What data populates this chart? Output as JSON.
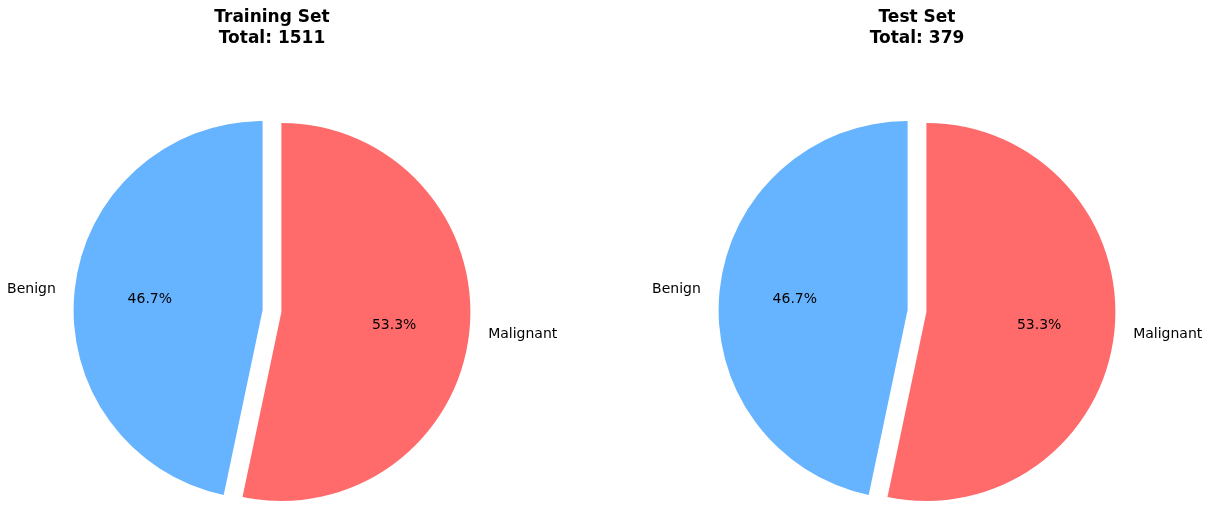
{
  "chart_data": [
    {
      "type": "pie",
      "title": "Training Set\nTotal: 1511",
      "categories": [
        "Benign",
        "Malignant"
      ],
      "values": [
        46.7,
        53.3
      ],
      "colors": [
        "#66b3ff",
        "#ff6b6b"
      ],
      "value_labels": [
        "46.7%",
        "53.3%"
      ],
      "legend": false
    },
    {
      "type": "pie",
      "title": "Test Set\nTotal: 379",
      "categories": [
        "Benign",
        "Malignant"
      ],
      "values": [
        46.7,
        53.3
      ],
      "colors": [
        "#66b3ff",
        "#ff6b6b"
      ],
      "value_labels": [
        "46.7%",
        "53.3%"
      ],
      "legend": false
    }
  ]
}
